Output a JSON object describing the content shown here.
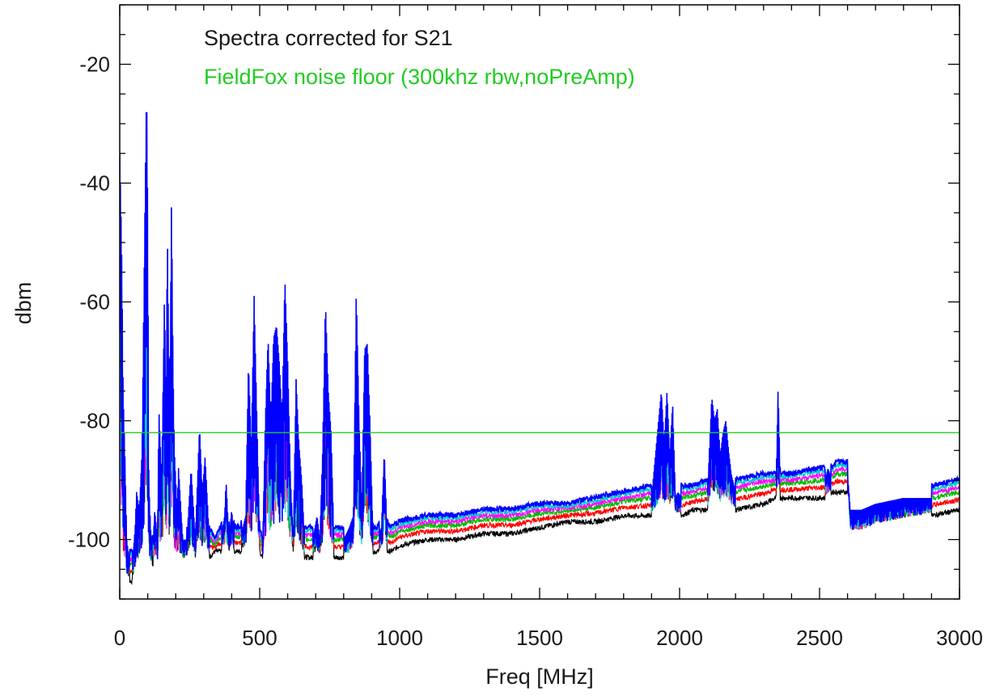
{
  "chart_data": {
    "type": "line",
    "xlabel": "Freq [MHz]",
    "ylabel": "dbm",
    "xlim": [
      0,
      3000
    ],
    "ylim": [
      -110,
      -10
    ],
    "x_ticks": [
      0,
      500,
      1000,
      1500,
      2000,
      2500,
      3000
    ],
    "y_ticks": [
      -20,
      -40,
      -60,
      -80,
      -100
    ],
    "grid": false,
    "legend_position": "top-left",
    "legend": [
      {
        "label": "Spectra corrected for S21",
        "color": "#1a1a1a"
      },
      {
        "label": "FieldFox noise floor (300khz rbw,noPreAmp)",
        "color": "#22cc22"
      }
    ],
    "noise_floor": {
      "y": -82,
      "color": "#22cc22"
    },
    "series_colors": [
      "#000000",
      "#ff0000",
      "#00bb00",
      "#ff00ff",
      "#00cccc",
      "#0000ff"
    ],
    "envelope": {
      "x": [
        0,
        4,
        8,
        12,
        18,
        25,
        35,
        45,
        55,
        60,
        70,
        80,
        90,
        96,
        100,
        104,
        110,
        118,
        125,
        135,
        140,
        150,
        160,
        165,
        170,
        178,
        185,
        190,
        195,
        205,
        210,
        225,
        240,
        255,
        270,
        285,
        295,
        305,
        320,
        340,
        360,
        375,
        380,
        390,
        400,
        410,
        430,
        450,
        460,
        470,
        480,
        490,
        500,
        510,
        520,
        530,
        540,
        550,
        560,
        570,
        580,
        590,
        600,
        610,
        620,
        630,
        640,
        650,
        660,
        670,
        690,
        705,
        715,
        725,
        735,
        745,
        755,
        765,
        780,
        800,
        820,
        835,
        845,
        855,
        865,
        875,
        885,
        895,
        905,
        920,
        935,
        945,
        955,
        970,
        1000,
        1100,
        1200,
        1300,
        1400,
        1500,
        1600,
        1700,
        1800,
        1900,
        1925,
        1935,
        1945,
        1955,
        1965,
        1975,
        1985,
        1995,
        2005,
        2050,
        2100,
        2115,
        2125,
        2135,
        2145,
        2155,
        2165,
        2175,
        2185,
        2200,
        2300,
        2345,
        2352,
        2360,
        2400,
        2500,
        2520,
        2530,
        2545,
        2560,
        2600,
        2610,
        2650,
        2700,
        2800,
        2900,
        3000
      ],
      "top": [
        -35,
        -44,
        -55,
        -75,
        -85,
        -100,
        -104,
        -104,
        -98,
        -92,
        -95,
        -85,
        -45,
        -23,
        -45,
        -90,
        -98,
        -102,
        -95,
        -100,
        -78,
        -90,
        -58,
        -80,
        -48,
        -80,
        -42,
        -70,
        -85,
        -95,
        -88,
        -100,
        -100,
        -88,
        -100,
        -81,
        -92,
        -86,
        -100,
        -102,
        -100,
        -96,
        -90,
        -100,
        -95,
        -100,
        -100,
        -96,
        -70,
        -85,
        -59,
        -80,
        -100,
        -102,
        -80,
        -66,
        -80,
        -66,
        -64,
        -70,
        -80,
        -56,
        -70,
        -90,
        -100,
        -73,
        -84,
        -90,
        -100,
        -100,
        -100,
        -96,
        -100,
        -85,
        -60,
        -75,
        -82,
        -100,
        -100,
        -100,
        -98,
        -96,
        -58,
        -80,
        -95,
        -68,
        -67,
        -82,
        -100,
        -100,
        -98,
        -85,
        -99,
        -100,
        -99,
        -98,
        -98,
        -97,
        -97,
        -96,
        -96,
        -95,
        -94,
        -93,
        -80,
        -75,
        -84,
        -75,
        -86,
        -77,
        -93,
        -92,
        -93,
        -93,
        -92,
        -76,
        -80,
        -78,
        -86,
        -82,
        -80,
        -85,
        -89,
        -92,
        -91,
        -91,
        -74,
        -91,
        -91,
        -90,
        -90,
        -88,
        -90,
        -89,
        -89,
        -95,
        -95,
        -94,
        -93,
        -93,
        -92
      ],
      "bottom": [
        -95,
        -100,
        -105,
        -107,
        -107,
        -107,
        -107,
        -107,
        -106,
        -105,
        -105,
        -105,
        -104,
        -104,
        -104,
        -105,
        -105,
        -104,
        -104,
        -104,
        -104,
        -104,
        -104,
        -104,
        -104,
        -104,
        -104,
        -104,
        -104,
        -104,
        -104,
        -104,
        -103,
        -103,
        -103,
        -103,
        -103,
        -103,
        -103,
        -102,
        -102,
        -102,
        -102,
        -102,
        -102,
        -102,
        -102,
        -102,
        -102,
        -102,
        -102,
        -102,
        -102,
        -103,
        -103,
        -103,
        -103,
        -103,
        -102,
        -102,
        -102,
        -102,
        -102,
        -102,
        -102,
        -103,
        -103,
        -103,
        -103,
        -103,
        -103,
        -103,
        -103,
        -103,
        -103,
        -103,
        -103,
        -103,
        -103,
        -103,
        -103,
        -102,
        -102,
        -102,
        -102,
        -102,
        -102,
        -102,
        -102,
        -102,
        -102,
        -102,
        -102,
        -102,
        -101,
        -100,
        -100,
        -99,
        -99,
        -98,
        -97,
        -97,
        -96,
        -96,
        -96,
        -96,
        -96,
        -96,
        -96,
        -96,
        -96,
        -96,
        -96,
        -95,
        -95,
        -95,
        -95,
        -95,
        -95,
        -95,
        -95,
        -95,
        -95,
        -95,
        -94,
        -93,
        -93,
        -93,
        -93,
        -93,
        -93,
        -93,
        -92,
        -92,
        -92,
        -99,
        -99,
        -98,
        -97,
        -96,
        -95
      ]
    }
  }
}
